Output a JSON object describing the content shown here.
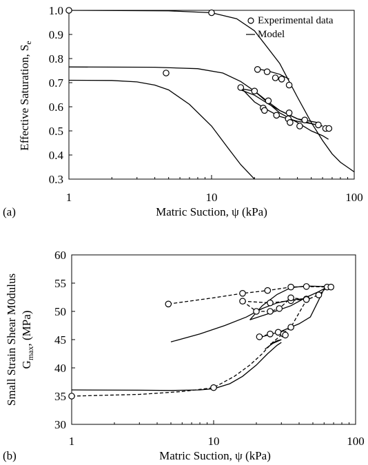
{
  "chart_data": [
    {
      "panel_label": "(a)",
      "type": "scatter",
      "xscale": "log",
      "xlim": [
        1,
        100
      ],
      "ylim": [
        0.3,
        1.0
      ],
      "xlabel": "Matric Suction, ψ (kPa)",
      "ylabel": "Effective Saturation, S",
      "ylabel_subscript": "e",
      "x_ticks": [
        1,
        10,
        100
      ],
      "x_tick_labels": [
        "1",
        "10",
        "100"
      ],
      "y_ticks": [
        0.3,
        0.4,
        0.5,
        0.6,
        0.7,
        0.8,
        0.9,
        1.0
      ],
      "y_tick_labels": [
        "0.3",
        "0.4",
        "0.5",
        "0.6",
        "0.7",
        "0.8",
        "0.9",
        "1.0"
      ],
      "legend": {
        "position": "top-right",
        "entries": [
          {
            "label": "Experimental data",
            "marker": "circle"
          },
          {
            "label": "Model",
            "marker": "line"
          }
        ]
      },
      "series": [
        {
          "name": "Experimental data",
          "style": "circle",
          "points": [
            [
              1,
              1.0
            ],
            [
              10,
              0.99
            ],
            [
              4.8,
              0.74
            ],
            [
              21,
              0.755
            ],
            [
              24.5,
              0.745
            ],
            [
              28,
              0.72
            ],
            [
              31,
              0.715
            ],
            [
              35,
              0.69
            ],
            [
              16,
              0.68
            ],
            [
              20,
              0.665
            ],
            [
              23,
              0.595
            ],
            [
              23.5,
              0.585
            ],
            [
              25,
              0.625
            ],
            [
              28.5,
              0.565
            ],
            [
              35,
              0.575
            ],
            [
              34.5,
              0.55
            ],
            [
              35.5,
              0.535
            ],
            [
              41.5,
              0.52
            ],
            [
              45,
              0.545
            ],
            [
              56,
              0.525
            ],
            [
              63,
              0.51
            ],
            [
              66.5,
              0.51
            ]
          ]
        },
        {
          "name": "Model",
          "style": "line",
          "curves": [
            [
              [
                1,
                1.0
              ],
              [
                5,
                0.998
              ],
              [
                10,
                0.99
              ],
              [
                15,
                0.965
              ],
              [
                20,
                0.915
              ],
              [
                30,
                0.78
              ],
              [
                40,
                0.64
              ],
              [
                50,
                0.535
              ],
              [
                60,
                0.46
              ],
              [
                70,
                0.405
              ],
              [
                80,
                0.37
              ],
              [
                100,
                0.33
              ]
            ],
            [
              [
                1,
                0.765
              ],
              [
                4,
                0.764
              ],
              [
                8,
                0.758
              ],
              [
                12,
                0.74
              ],
              [
                16,
                0.705
              ],
              [
                20,
                0.665
              ],
              [
                25,
                0.62
              ],
              [
                30,
                0.585
              ],
              [
                40,
                0.55
              ],
              [
                50,
                0.53
              ],
              [
                60,
                0.52
              ]
            ],
            [
              [
                1,
                0.71
              ],
              [
                2,
                0.709
              ],
              [
                3,
                0.703
              ],
              [
                4,
                0.69
              ],
              [
                5,
                0.67
              ],
              [
                7,
                0.61
              ],
              [
                10,
                0.52
              ],
              [
                13,
                0.43
              ],
              [
                16,
                0.36
              ],
              [
                20,
                0.3
              ]
            ],
            [
              [
                16,
                0.675
              ],
              [
                20,
                0.665
              ],
              [
                25,
                0.615
              ],
              [
                30,
                0.575
              ],
              [
                40,
                0.535
              ],
              [
                50,
                0.5
              ],
              [
                60,
                0.48
              ],
              [
                66,
                0.465
              ]
            ],
            [
              [
                16,
                0.68
              ],
              [
                20,
                0.62
              ],
              [
                25,
                0.585
              ],
              [
                30,
                0.56
              ],
              [
                40,
                0.54
              ],
              [
                50,
                0.53
              ],
              [
                60,
                0.52
              ]
            ],
            [
              [
                22,
                0.755
              ],
              [
                25,
                0.748
              ],
              [
                30,
                0.735
              ],
              [
                35,
                0.715
              ]
            ],
            [
              [
                16,
                0.67
              ],
              [
                20,
                0.648
              ],
              [
                25,
                0.612
              ],
              [
                30,
                0.585
              ],
              [
                40,
                0.55
              ],
              [
                55,
                0.535
              ]
            ]
          ]
        }
      ]
    },
    {
      "panel_label": "(b)",
      "type": "scatter",
      "xscale": "log",
      "xlim": [
        1,
        100
      ],
      "ylim": [
        30,
        60
      ],
      "xlabel": "Matric Suction, ψ (kPa)",
      "ylabel_line1": "Small Strain Shear M0dulus",
      "ylabel_line2": "G",
      "ylabel_subscript": "max",
      "ylabel_suffix": ", (MPa)",
      "x_ticks": [
        1,
        10,
        100
      ],
      "x_tick_labels": [
        "1",
        "10",
        "100"
      ],
      "y_ticks": [
        30,
        35,
        40,
        45,
        50,
        55,
        60
      ],
      "y_tick_labels": [
        "30",
        "35",
        "40",
        "45",
        "50",
        "55",
        "60"
      ],
      "series": [
        {
          "style": "circle",
          "points": [
            [
              1,
              35
            ],
            [
              10,
              36.5
            ],
            [
              4.8,
              51.3
            ],
            [
              16,
              53.2
            ],
            [
              24,
              53.7
            ],
            [
              35,
              54.3
            ],
            [
              45,
              54.4
            ],
            [
              63,
              54.3
            ],
            [
              67,
              54.3
            ],
            [
              16,
              51.8
            ],
            [
              25,
              51.5
            ],
            [
              35,
              51.9
            ],
            [
              45,
              52.2
            ],
            [
              55,
              52.9
            ],
            [
              20,
              50
            ],
            [
              25,
              50
            ],
            [
              29,
              50.5
            ],
            [
              35,
              52.4
            ],
            [
              45,
              52.1
            ],
            [
              21,
              45.5
            ],
            [
              25,
              46
            ],
            [
              28.5,
              46.3
            ],
            [
              31,
              46
            ],
            [
              32,
              45.8
            ],
            [
              35,
              47.2
            ]
          ]
        },
        {
          "style": "dashed",
          "curves": [
            [
              [
                1,
                35
              ],
              [
                3,
                35.3
              ],
              [
                6,
                35.8
              ],
              [
                10,
                36.5
              ],
              [
                14,
                38.5
              ],
              [
                18,
                40.5
              ],
              [
                22,
                42.5
              ],
              [
                26,
                44.5
              ],
              [
                30,
                45.8
              ],
              [
                35,
                47.2
              ],
              [
                45,
                52
              ],
              [
                50,
                52.5
              ],
              [
                55,
                52.9
              ],
              [
                63,
                54.3
              ]
            ],
            [
              [
                4.8,
                51.3
              ],
              [
                10,
                52.4
              ],
              [
                16,
                53.2
              ],
              [
                24,
                53.7
              ],
              [
                35,
                54.3
              ],
              [
                45,
                54.4
              ],
              [
                63,
                54.3
              ],
              [
                67,
                54.3
              ]
            ],
            [
              [
                16,
                51.8
              ],
              [
                20,
                50
              ],
              [
                25,
                50
              ],
              [
                29,
                50.5
              ],
              [
                35,
                52.4
              ],
              [
                45,
                52.1
              ]
            ],
            [
              [
                16,
                51.8
              ],
              [
                25,
                51.5
              ],
              [
                35,
                51.9
              ],
              [
                45,
                52.2
              ]
            ],
            [
              [
                21,
                45.5
              ],
              [
                25,
                46
              ],
              [
                28.5,
                46.3
              ],
              [
                32,
                45.8
              ]
            ]
          ]
        },
        {
          "style": "line",
          "curves": [
            [
              [
                1,
                36.1
              ],
              [
                3,
                36.05
              ],
              [
                5,
                36
              ],
              [
                8,
                36.1
              ],
              [
                10,
                36.3
              ],
              [
                13,
                37.2
              ],
              [
                16,
                38.5
              ],
              [
                20,
                40.5
              ],
              [
                24,
                42.5
              ],
              [
                28,
                44
              ],
              [
                30,
                44.5
              ]
            ],
            [
              [
                5,
                44.6
              ],
              [
                8,
                46
              ],
              [
                12,
                47.5
              ],
              [
                17,
                49
              ],
              [
                22,
                50.5
              ],
              [
                28,
                51.5
              ],
              [
                35,
                52
              ],
              [
                45,
                52.3
              ]
            ],
            [
              [
                18,
                48.5
              ],
              [
                22,
                51
              ],
              [
                28,
                53
              ],
              [
                35,
                54.2
              ],
              [
                45,
                54.5
              ],
              [
                60,
                54.4
              ],
              [
                70,
                54.3
              ]
            ],
            [
              [
                18,
                48.5
              ],
              [
                25,
                49.7
              ],
              [
                35,
                51
              ],
              [
                45,
                52.5
              ],
              [
                55,
                53.5
              ],
              [
                63,
                54.3
              ]
            ],
            [
              [
                22,
                45.5
              ],
              [
                30,
                46.5
              ],
              [
                40,
                47.8
              ],
              [
                48,
                49
              ],
              [
                55,
                52
              ],
              [
                60,
                54
              ]
            ],
            [
              [
                23,
                43.3
              ],
              [
                26,
                44.3
              ],
              [
                30,
                45
              ],
              [
                28,
                44.8
              ],
              [
                25,
                44.2
              ]
            ]
          ]
        }
      ]
    }
  ]
}
